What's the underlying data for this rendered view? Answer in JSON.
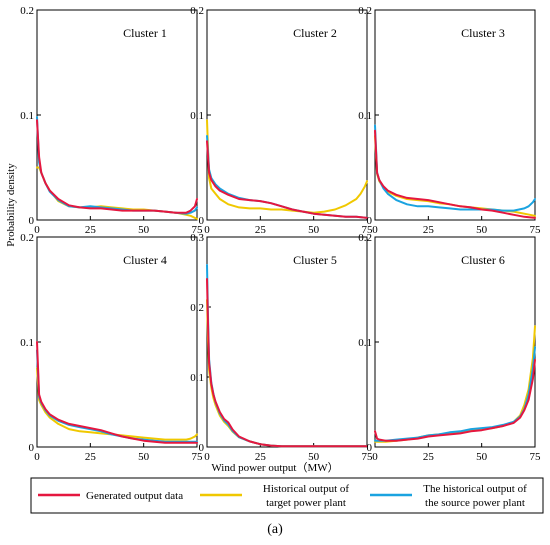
{
  "chart_data": [
    {
      "type": "line",
      "title": "Cluster 1",
      "xlim": [
        0,
        75
      ],
      "ylim": [
        0,
        0.2
      ],
      "xticks": [
        0,
        25,
        50,
        75
      ],
      "yticks": [
        "0",
        "0.1",
        "0.2"
      ],
      "series": [
        {
          "name": "Generated output data",
          "color": "#e5173f",
          "x": [
            0,
            1,
            2,
            4,
            6,
            10,
            15,
            20,
            25,
            30,
            35,
            40,
            45,
            50,
            55,
            60,
            65,
            70,
            72,
            74,
            75
          ],
          "y": [
            0.095,
            0.06,
            0.045,
            0.035,
            0.028,
            0.02,
            0.014,
            0.012,
            0.011,
            0.011,
            0.01,
            0.009,
            0.009,
            0.009,
            0.009,
            0.008,
            0.007,
            0.007,
            0.009,
            0.013,
            0.02
          ]
        },
        {
          "name": "Historical output of target power plant",
          "color": "#f0c800",
          "x": [
            0,
            1,
            2,
            4,
            6,
            10,
            15,
            20,
            25,
            30,
            35,
            40,
            45,
            50,
            55,
            60,
            65,
            70,
            72,
            74,
            75
          ],
          "y": [
            0.05,
            0.05,
            0.045,
            0.035,
            0.028,
            0.018,
            0.013,
            0.012,
            0.012,
            0.013,
            0.012,
            0.011,
            0.01,
            0.01,
            0.009,
            0.008,
            0.007,
            0.005,
            0.004,
            0.002,
            0.001
          ]
        },
        {
          "name": "The historical output of the source power plant",
          "color": "#1aa3e0",
          "x": [
            0,
            1,
            2,
            4,
            6,
            10,
            15,
            20,
            25,
            30,
            35,
            40,
            45,
            50,
            55,
            60,
            65,
            70,
            72,
            74,
            75
          ],
          "y": [
            0.098,
            0.055,
            0.045,
            0.035,
            0.027,
            0.019,
            0.013,
            0.012,
            0.013,
            0.012,
            0.011,
            0.01,
            0.009,
            0.009,
            0.009,
            0.008,
            0.007,
            0.006,
            0.007,
            0.009,
            0.012
          ]
        }
      ]
    },
    {
      "type": "line",
      "title": "Cluster 2",
      "xlim": [
        0,
        75
      ],
      "ylim": [
        0,
        0.2
      ],
      "xticks": [
        0,
        25,
        50,
        75
      ],
      "yticks": [
        "0",
        "0.1",
        "0.2"
      ],
      "series": [
        {
          "name": "Generated output data",
          "color": "#e5173f",
          "x": [
            0,
            1,
            2,
            4,
            6,
            10,
            15,
            20,
            25,
            30,
            35,
            40,
            45,
            50,
            55,
            60,
            65,
            70,
            75
          ],
          "y": [
            0.075,
            0.045,
            0.038,
            0.032,
            0.028,
            0.024,
            0.02,
            0.019,
            0.018,
            0.016,
            0.013,
            0.01,
            0.008,
            0.006,
            0.005,
            0.004,
            0.003,
            0.003,
            0.002
          ]
        },
        {
          "name": "Historical output of target power plant",
          "color": "#f0c800",
          "x": [
            0,
            1,
            2,
            4,
            6,
            10,
            15,
            20,
            25,
            30,
            35,
            40,
            45,
            50,
            55,
            60,
            65,
            70,
            72,
            74,
            75
          ],
          "y": [
            0.095,
            0.04,
            0.03,
            0.025,
            0.02,
            0.015,
            0.012,
            0.011,
            0.011,
            0.01,
            0.01,
            0.009,
            0.008,
            0.007,
            0.008,
            0.01,
            0.014,
            0.02,
            0.025,
            0.032,
            0.037
          ]
        },
        {
          "name": "The historical output of the source power plant",
          "color": "#1aa3e0",
          "x": [
            0,
            1,
            2,
            4,
            6,
            10,
            15,
            20,
            25,
            30,
            35,
            40,
            45,
            50,
            55,
            60,
            65,
            70,
            75
          ],
          "y": [
            0.08,
            0.048,
            0.04,
            0.034,
            0.03,
            0.025,
            0.021,
            0.019,
            0.018,
            0.016,
            0.013,
            0.01,
            0.008,
            0.006,
            0.005,
            0.004,
            0.003,
            0.003,
            0.002
          ]
        }
      ]
    },
    {
      "type": "line",
      "title": "Cluster 3",
      "xlim": [
        0,
        75
      ],
      "ylim": [
        0,
        0.2
      ],
      "xticks": [
        0,
        25,
        50,
        75
      ],
      "yticks": [
        "0",
        "0.1",
        "0.2"
      ],
      "series": [
        {
          "name": "Generated output data",
          "color": "#e5173f",
          "x": [
            0,
            1,
            2,
            4,
            6,
            10,
            15,
            20,
            25,
            30,
            35,
            40,
            45,
            50,
            55,
            60,
            65,
            70,
            75
          ],
          "y": [
            0.085,
            0.045,
            0.038,
            0.032,
            0.028,
            0.024,
            0.021,
            0.02,
            0.019,
            0.017,
            0.015,
            0.013,
            0.012,
            0.01,
            0.009,
            0.007,
            0.005,
            0.003,
            0.002
          ]
        },
        {
          "name": "Historical output of target power plant",
          "color": "#f0c800",
          "x": [
            0,
            1,
            2,
            4,
            6,
            10,
            15,
            20,
            25,
            30,
            35,
            40,
            45,
            50,
            55,
            60,
            65,
            70,
            75
          ],
          "y": [
            0.08,
            0.044,
            0.037,
            0.031,
            0.027,
            0.023,
            0.02,
            0.019,
            0.018,
            0.016,
            0.015,
            0.013,
            0.012,
            0.011,
            0.01,
            0.009,
            0.008,
            0.006,
            0.004
          ]
        },
        {
          "name": "The historical output of the source power plant",
          "color": "#1aa3e0",
          "x": [
            0,
            1,
            2,
            4,
            6,
            10,
            15,
            20,
            25,
            30,
            35,
            40,
            45,
            50,
            55,
            60,
            65,
            70,
            72,
            74,
            75
          ],
          "y": [
            0.09,
            0.045,
            0.038,
            0.03,
            0.025,
            0.019,
            0.015,
            0.013,
            0.013,
            0.012,
            0.011,
            0.01,
            0.01,
            0.01,
            0.01,
            0.009,
            0.009,
            0.011,
            0.013,
            0.017,
            0.02
          ]
        }
      ]
    },
    {
      "type": "line",
      "title": "Cluster 4",
      "xlim": [
        0,
        75
      ],
      "ylim": [
        0,
        0.2
      ],
      "xticks": [
        0,
        25,
        50,
        75
      ],
      "yticks": [
        "0",
        "0.1",
        "0.2"
      ],
      "series": [
        {
          "name": "Generated output data",
          "color": "#e5173f",
          "x": [
            0,
            1,
            2,
            4,
            6,
            10,
            15,
            20,
            25,
            30,
            35,
            40,
            45,
            50,
            55,
            60,
            65,
            70,
            75
          ],
          "y": [
            0.1,
            0.05,
            0.043,
            0.036,
            0.031,
            0.026,
            0.022,
            0.02,
            0.018,
            0.016,
            0.013,
            0.01,
            0.008,
            0.006,
            0.005,
            0.004,
            0.004,
            0.004,
            0.004
          ]
        },
        {
          "name": "Historical output of target power plant",
          "color": "#f0c800",
          "x": [
            0,
            1,
            2,
            4,
            6,
            10,
            15,
            20,
            25,
            30,
            35,
            40,
            45,
            50,
            55,
            60,
            65,
            70,
            72,
            74,
            75
          ],
          "y": [
            0.075,
            0.045,
            0.04,
            0.033,
            0.028,
            0.022,
            0.017,
            0.015,
            0.014,
            0.013,
            0.012,
            0.011,
            0.01,
            0.009,
            0.008,
            0.007,
            0.007,
            0.007,
            0.008,
            0.01,
            0.012
          ]
        },
        {
          "name": "The historical output of the source power plant",
          "color": "#1aa3e0",
          "x": [
            0,
            1,
            2,
            4,
            6,
            10,
            15,
            20,
            25,
            30,
            35,
            40,
            45,
            50,
            55,
            60,
            65,
            70,
            75
          ],
          "y": [
            0.092,
            0.048,
            0.042,
            0.035,
            0.03,
            0.025,
            0.021,
            0.019,
            0.017,
            0.015,
            0.012,
            0.01,
            0.008,
            0.007,
            0.006,
            0.005,
            0.005,
            0.005,
            0.005
          ]
        }
      ]
    },
    {
      "type": "line",
      "title": "Cluster 5",
      "xlim": [
        0,
        75
      ],
      "ylim": [
        0,
        0.3
      ],
      "xticks": [
        0,
        25,
        50,
        75
      ],
      "yticks": [
        "0",
        "0.1",
        "0.2",
        "0.3"
      ],
      "series": [
        {
          "name": "Generated output data",
          "color": "#e5173f",
          "x": [
            0,
            0.5,
            1,
            2,
            3,
            4,
            6,
            8,
            10,
            12,
            15,
            20,
            25,
            30,
            35,
            40,
            50,
            60,
            75
          ],
          "y": [
            0.24,
            0.17,
            0.12,
            0.09,
            0.075,
            0.065,
            0.05,
            0.04,
            0.035,
            0.025,
            0.015,
            0.008,
            0.004,
            0.002,
            0.001,
            0.001,
            0.001,
            0.001,
            0.001
          ]
        },
        {
          "name": "Historical output of target power plant",
          "color": "#f0c800",
          "x": [
            0,
            0.5,
            1,
            2,
            3,
            4,
            6,
            8,
            10,
            12,
            15,
            20,
            25,
            30,
            35,
            40,
            50,
            60,
            75
          ],
          "y": [
            0.21,
            0.15,
            0.11,
            0.085,
            0.07,
            0.06,
            0.045,
            0.036,
            0.03,
            0.022,
            0.014,
            0.008,
            0.004,
            0.002,
            0.001,
            0.001,
            0.001,
            0.001,
            0.001
          ]
        },
        {
          "name": "The historical output of the source power plant",
          "color": "#1aa3e0",
          "x": [
            0,
            0.5,
            1,
            2,
            3,
            4,
            6,
            8,
            10,
            12,
            15,
            20,
            25,
            30,
            35,
            40,
            50,
            60,
            75
          ],
          "y": [
            0.26,
            0.18,
            0.125,
            0.092,
            0.076,
            0.064,
            0.048,
            0.038,
            0.032,
            0.023,
            0.014,
            0.008,
            0.004,
            0.002,
            0.001,
            0.001,
            0.001,
            0.001,
            0.001
          ]
        }
      ]
    },
    {
      "type": "line",
      "title": "Cluster 6",
      "xlim": [
        0,
        75
      ],
      "ylim": [
        0,
        0.2
      ],
      "xticks": [
        0,
        25,
        50,
        75
      ],
      "yticks": [
        "0",
        "0.1",
        "0.2"
      ],
      "series": [
        {
          "name": "Generated output data",
          "color": "#e5173f",
          "x": [
            0,
            1,
            2,
            5,
            10,
            15,
            20,
            25,
            30,
            35,
            40,
            45,
            50,
            55,
            60,
            65,
            68,
            70,
            72,
            74,
            75
          ],
          "y": [
            0.015,
            0.008,
            0.007,
            0.006,
            0.006,
            0.007,
            0.008,
            0.01,
            0.011,
            0.012,
            0.013,
            0.015,
            0.016,
            0.018,
            0.02,
            0.023,
            0.028,
            0.035,
            0.045,
            0.065,
            0.083
          ]
        },
        {
          "name": "Historical output of target power plant",
          "color": "#f0c800",
          "x": [
            0,
            1,
            2,
            5,
            10,
            15,
            20,
            25,
            30,
            35,
            40,
            45,
            50,
            55,
            60,
            65,
            68,
            70,
            72,
            74,
            75
          ],
          "y": [
            0.005,
            0.005,
            0.005,
            0.005,
            0.006,
            0.007,
            0.009,
            0.011,
            0.012,
            0.013,
            0.014,
            0.016,
            0.017,
            0.018,
            0.02,
            0.024,
            0.03,
            0.04,
            0.055,
            0.085,
            0.115
          ]
        },
        {
          "name": "The historical output of the source power plant",
          "color": "#1aa3e0",
          "x": [
            0,
            1,
            2,
            5,
            10,
            15,
            20,
            25,
            30,
            35,
            40,
            45,
            50,
            55,
            60,
            65,
            68,
            70,
            72,
            74,
            75
          ],
          "y": [
            0.006,
            0.006,
            0.006,
            0.006,
            0.007,
            0.008,
            0.009,
            0.011,
            0.012,
            0.014,
            0.015,
            0.017,
            0.018,
            0.019,
            0.021,
            0.024,
            0.029,
            0.036,
            0.05,
            0.075,
            0.095
          ]
        }
      ]
    }
  ],
  "axes": {
    "ylabel": "Probability density",
    "xlabel": "Wind power output（MW）"
  },
  "legend": {
    "position": "bottom",
    "items": [
      {
        "label_lines": [
          "Generated output data"
        ],
        "color": "#e5173f"
      },
      {
        "label_lines": [
          "Historical output of",
          "target power plant"
        ],
        "color": "#f0c800"
      },
      {
        "label_lines": [
          "The historical output of",
          "the source power plant"
        ],
        "color": "#1aa3e0"
      }
    ]
  },
  "caption": "(a)"
}
